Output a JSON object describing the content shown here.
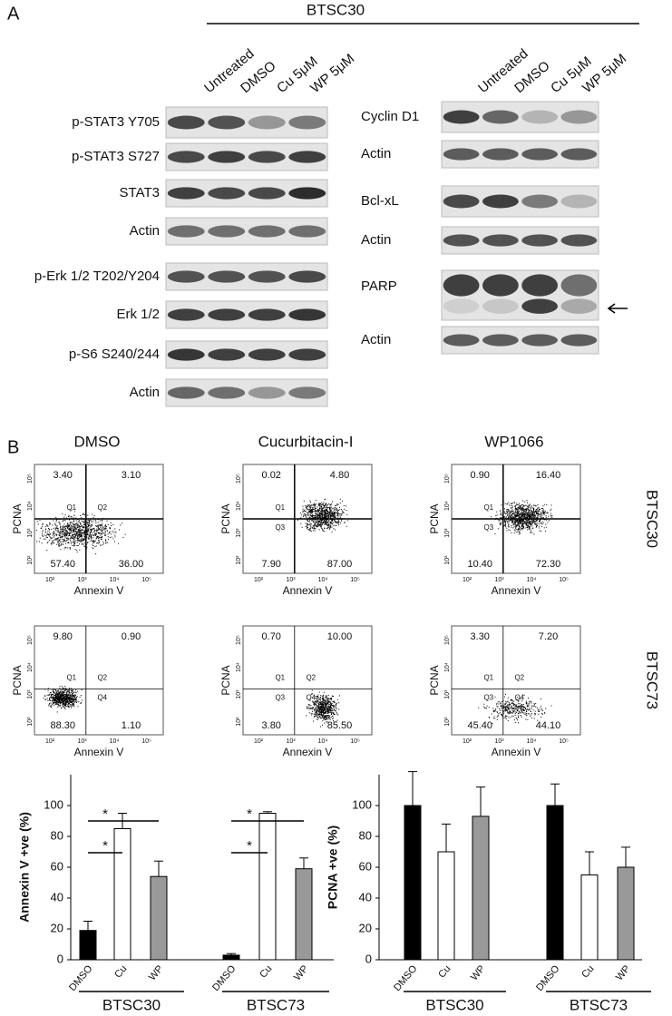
{
  "panel_a": {
    "label": "A",
    "cell_line": "BTSC30",
    "left": {
      "columns": [
        "Untreated",
        "DMSO",
        "Cu 5μM",
        "WP 5μM"
      ],
      "rows": [
        "p-STAT3 Y705",
        "p-STAT3 S727",
        "STAT3",
        "Actin",
        "p-Erk 1/2 T202/Y204",
        "Erk 1/2",
        "p-S6 S240/244",
        "Actin"
      ]
    },
    "right": {
      "columns": [
        "Untreated",
        "DMSO",
        "Cu 5μM",
        "WP 5μM"
      ],
      "rows": [
        "Cyclin D1",
        "Actin",
        "Bcl-xL",
        "Actin",
        "PARP",
        "Actin"
      ]
    }
  },
  "panel_b": {
    "label": "B",
    "columns": [
      "DMSO",
      "Cucurbitacin-I",
      "WP1066"
    ],
    "rows": [
      "BTSC30",
      "BTSC73"
    ],
    "x_label": "Annexin V",
    "y_label": "PCNA",
    "quadrant_names": [
      "Q1",
      "Q2",
      "Q3",
      "Q4"
    ],
    "axis_ticks": [
      "10²",
      "10³",
      "10⁴",
      "10⁵"
    ],
    "plots": [
      [
        [
          "3.40",
          "3.10",
          "57.40",
          "36.00"
        ],
        [
          "0.02",
          "4.80",
          "7.90",
          "87.00"
        ],
        [
          "0.90",
          "16.40",
          "10.40",
          "72.30"
        ]
      ],
      [
        [
          "9.80",
          "0.90",
          "88.30",
          "1.10"
        ],
        [
          "0.70",
          "10.00",
          "3.80",
          "85.50"
        ],
        [
          "3.30",
          "7.20",
          "45.40",
          "44.10"
        ]
      ]
    ]
  },
  "chart_data": [
    {
      "type": "bar",
      "y_label": "Annexin V +ve (%)",
      "categories": [
        "DMSO",
        "Cu",
        "WP",
        "DMSO",
        "Cu",
        "WP"
      ],
      "groups": [
        "BTSC30",
        "BTSC73"
      ],
      "values": [
        19,
        85,
        54,
        3,
        95,
        59
      ],
      "errors": [
        6,
        10,
        10,
        1,
        1,
        7
      ],
      "colors": [
        "#000000",
        "#ffffff",
        "#999999",
        "#000000",
        "#ffffff",
        "#999999"
      ],
      "ylim": [
        0,
        120
      ],
      "yticks": [
        0,
        20,
        40,
        60,
        80,
        100
      ],
      "annotations": [
        "*",
        "*",
        "*",
        "*"
      ]
    },
    {
      "type": "bar",
      "y_label": "PCNA +ve (%)",
      "categories": [
        "DMSO",
        "Cu",
        "WP",
        "DMSO",
        "Cu",
        "WP"
      ],
      "groups": [
        "BTSC30",
        "BTSC73"
      ],
      "values": [
        100,
        70,
        93,
        100,
        55,
        60
      ],
      "errors": [
        22,
        18,
        19,
        14,
        15,
        13
      ],
      "colors": [
        "#000000",
        "#ffffff",
        "#999999",
        "#000000",
        "#ffffff",
        "#999999"
      ],
      "ylim": [
        0,
        120
      ],
      "yticks": [
        0,
        20,
        40,
        60,
        80,
        100
      ]
    }
  ]
}
